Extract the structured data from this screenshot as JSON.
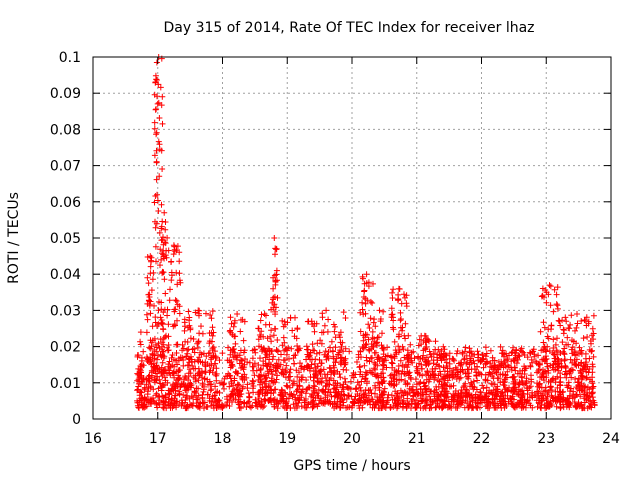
{
  "chart_data": {
    "type": "scatter",
    "title": "Day 315 of 2014, Rate Of TEC Index for receiver lhaz",
    "xlabel": "GPS time / hours",
    "ylabel": "ROTI / TECUs",
    "xlim": [
      16,
      24
    ],
    "ylim": [
      0,
      0.1
    ],
    "x_ticks": [
      "16",
      "17",
      "18",
      "19",
      "20",
      "21",
      "22",
      "23",
      "24"
    ],
    "y_ticks": [
      "0",
      "0.01",
      "0.02",
      "0.03",
      "0.04",
      "0.05",
      "0.06",
      "0.07",
      "0.08",
      "0.09",
      "0.1"
    ],
    "grid": true,
    "marker": "+",
    "color": "#ff0000",
    "series": [
      {
        "name": "ROTI",
        "baseline_range": [
          16.68,
          23.75
        ],
        "bursts": [
          {
            "x": [
              16.68,
              16.8
            ],
            "y_max": 0.024
          },
          {
            "x": [
              16.82,
              16.95
            ],
            "y_max": 0.045
          },
          {
            "x": [
              16.95,
              17.08
            ],
            "y_max": 0.1
          },
          {
            "x": [
              17.05,
              17.15
            ],
            "y_max": 0.057
          },
          {
            "x": [
              17.15,
              17.35
            ],
            "y_max": 0.048
          },
          {
            "x": [
              17.35,
              17.9
            ],
            "y_max": 0.03
          },
          {
            "x": [
              18.1,
              18.35
            ],
            "y_max": 0.029
          },
          {
            "x": [
              18.55,
              18.75
            ],
            "y_max": 0.029
          },
          {
            "x": [
              18.75,
              18.85
            ],
            "y_max": 0.05
          },
          {
            "x": [
              18.9,
              19.2
            ],
            "y_max": 0.028
          },
          {
            "x": [
              19.3,
              19.9
            ],
            "y_max": 0.03
          },
          {
            "x": [
              20.1,
              20.35
            ],
            "y_max": 0.04
          },
          {
            "x": [
              20.35,
              20.5
            ],
            "y_max": 0.03
          },
          {
            "x": [
              20.6,
              20.85
            ],
            "y_max": 0.036
          },
          {
            "x": [
              20.85,
              21.4
            ],
            "y_max": 0.023
          },
          {
            "x": [
              21.4,
              22.3
            ],
            "y_max": 0.018
          },
          {
            "x": [
              22.3,
              22.9
            ],
            "y_max": 0.019
          },
          {
            "x": [
              22.9,
              23.2
            ],
            "y_max": 0.037
          },
          {
            "x": [
              23.2,
              23.75
            ],
            "y_max": 0.029
          }
        ]
      }
    ]
  }
}
